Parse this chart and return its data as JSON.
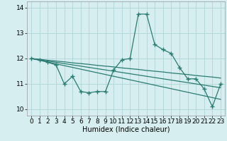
{
  "x": [
    0,
    1,
    2,
    3,
    4,
    5,
    6,
    7,
    8,
    9,
    10,
    11,
    12,
    13,
    14,
    15,
    16,
    17,
    18,
    19,
    20,
    21,
    22,
    23
  ],
  "y_main": [
    12.0,
    11.95,
    11.85,
    11.75,
    11.0,
    11.3,
    10.7,
    10.65,
    10.7,
    10.7,
    11.55,
    11.95,
    12.0,
    13.75,
    13.75,
    12.55,
    12.35,
    12.2,
    11.65,
    11.2,
    11.2,
    10.8,
    10.1,
    11.0
  ],
  "y_line1": [
    12.0,
    11.97,
    11.93,
    11.9,
    11.87,
    11.83,
    11.8,
    11.77,
    11.73,
    11.7,
    11.67,
    11.63,
    11.6,
    11.57,
    11.53,
    11.5,
    11.47,
    11.43,
    11.4,
    11.37,
    11.33,
    11.3,
    11.27,
    11.23
  ],
  "y_line2": [
    12.0,
    11.95,
    11.9,
    11.85,
    11.8,
    11.75,
    11.7,
    11.65,
    11.6,
    11.55,
    11.5,
    11.45,
    11.4,
    11.35,
    11.3,
    11.25,
    11.2,
    11.15,
    11.1,
    11.05,
    11.0,
    10.95,
    10.9,
    10.85
  ],
  "y_line3": [
    12.0,
    11.93,
    11.86,
    11.79,
    11.72,
    11.65,
    11.58,
    11.51,
    11.44,
    11.37,
    11.3,
    11.23,
    11.16,
    11.09,
    11.02,
    10.95,
    10.88,
    10.81,
    10.74,
    10.67,
    10.6,
    10.53,
    10.46,
    10.39
  ],
  "line_color": "#2a7b72",
  "bg_color": "#d6eef0",
  "grid_color": "#afd4d8",
  "xlabel": "Humidex (Indice chaleur)",
  "ylim": [
    9.75,
    14.25
  ],
  "xlim": [
    -0.5,
    23.5
  ],
  "yticks": [
    10,
    11,
    12,
    13,
    14
  ],
  "marker": "+",
  "markersize": 4,
  "markeredgewidth": 1.0,
  "linewidth": 0.9,
  "fontsize_xlabel": 7.0,
  "fontsize_ticks": 6.5
}
